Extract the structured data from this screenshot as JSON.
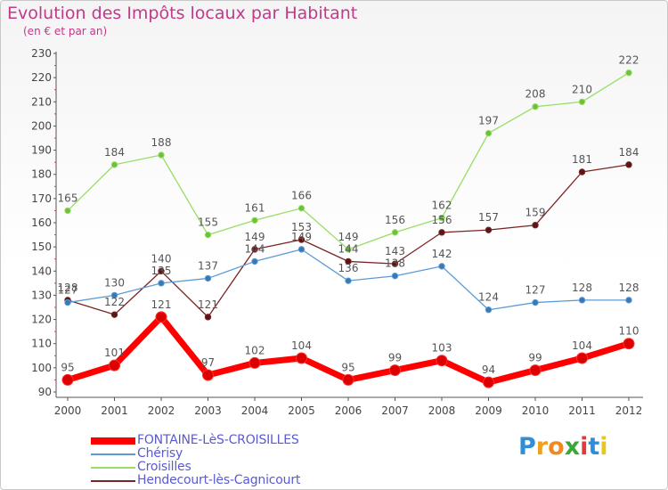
{
  "title": "Evolution des Impôts locaux par Habitant",
  "subtitle": "(en € et par an)",
  "brand": {
    "letters": [
      {
        "char": "P",
        "color": "#2f8fd6"
      },
      {
        "char": "r",
        "color": "#f0a020"
      },
      {
        "char": "o",
        "color": "#f08a20"
      },
      {
        "char": "x",
        "color": "#3aa836"
      },
      {
        "char": "i",
        "color": "#e23a3a"
      },
      {
        "char": "t",
        "color": "#2f8fd6"
      },
      {
        "char": "i",
        "color": "#e2c820"
      }
    ]
  },
  "chart_data": {
    "type": "line",
    "title": "Evolution des Impôts locaux par Habitant",
    "subtitle": "(en € et par an)",
    "xlabel": "",
    "ylabel": "",
    "categories": [
      "2000",
      "2001",
      "2002",
      "2003",
      "2004",
      "2005",
      "2006",
      "2007",
      "2008",
      "2009",
      "2010",
      "2011",
      "2012"
    ],
    "ylim": [
      90,
      230
    ],
    "yticks": [
      90,
      100,
      110,
      120,
      130,
      140,
      150,
      160,
      170,
      180,
      190,
      200,
      210,
      220,
      230
    ],
    "grid": false,
    "legend_position": "bottom-left",
    "series": [
      {
        "name": "FONTAINE-LèS-CROISILLES",
        "color": "#ff0000",
        "point_color": "#dd0000",
        "width": "thick",
        "values": [
          95,
          101,
          121,
          97,
          102,
          104,
          95,
          99,
          103,
          94,
          99,
          104,
          110
        ],
        "labels": [
          "95",
          "101",
          "121",
          "97",
          "102",
          "104",
          "95",
          "99",
          "103",
          "94",
          "99",
          "104",
          "110"
        ]
      },
      {
        "name": "Chérisy",
        "color": "#5b9bd5",
        "point_color": "#3a78b5",
        "width": "thin",
        "values": [
          127,
          130,
          135,
          137,
          144,
          149,
          136,
          138,
          142,
          124,
          127,
          128,
          128
        ],
        "labels": [
          "127",
          "130",
          "135",
          "137",
          "144",
          "149",
          "136",
          "138",
          "142",
          "124",
          "127",
          "128",
          "128"
        ]
      },
      {
        "name": "Croisilles",
        "color": "#99dd66",
        "point_color": "#6cc03a",
        "width": "thin",
        "values": [
          165,
          184,
          188,
          155,
          161,
          166,
          149,
          156,
          162,
          197,
          208,
          210,
          222
        ],
        "labels": [
          "165",
          "184",
          "188",
          "155",
          "161",
          "166",
          "149",
          "156",
          "162",
          "197",
          "208",
          "210",
          "222"
        ]
      },
      {
        "name": "Hendecourt-lès-Cagnicourt",
        "color": "#7a2525",
        "point_color": "#5a1515",
        "width": "thin",
        "values": [
          128,
          122,
          140,
          121,
          149,
          153,
          144,
          143,
          156,
          157,
          159,
          181,
          184
        ],
        "labels": [
          "128",
          "122",
          "140",
          "121",
          "149",
          "153",
          "144",
          "143",
          "156",
          "157",
          "159",
          "181",
          "184"
        ]
      }
    ]
  }
}
